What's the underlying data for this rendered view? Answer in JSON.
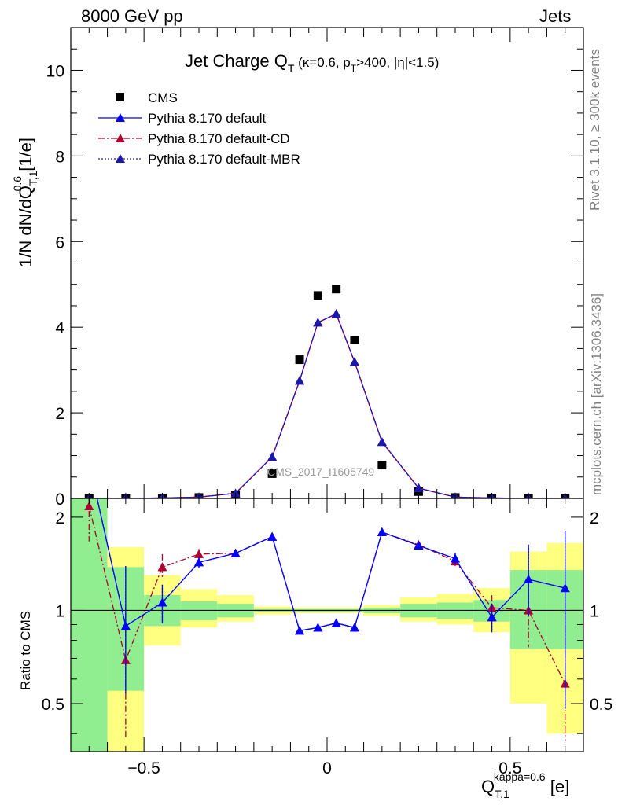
{
  "header": {
    "left": "8000 GeV pp",
    "right": "Jets"
  },
  "side_labels": {
    "rivet": "Rivet 3.1.10, ≥ 300k events",
    "mcplots": "mcplots.cern.ch [arXiv:1306.3436]"
  },
  "colors": {
    "data": "#000000",
    "default": "#0000ff",
    "cd": "#b00030",
    "mbr": "#1a18a8",
    "band_stat": "#90ee90",
    "band_sys": "#ffff80"
  },
  "chart_data": [
    {
      "type": "scatter",
      "title": "Jet Charge Q_T (κ=0.6, p_T>400, |η|<1.5)",
      "ylabel": "1/N dN/dQ_{T,1}^{0.6} [1/e]",
      "watermark": "CMS_2017_I1605749",
      "xlim": [
        -0.7,
        0.7
      ],
      "ylim": [
        0,
        11
      ],
      "yticks": [
        0,
        2,
        4,
        6,
        8,
        10
      ],
      "legend": [
        "CMS",
        "Pythia 8.170 default",
        "Pythia 8.170 default-CD",
        "Pythia 8.170 default-MBR"
      ],
      "legend_position": "top-left",
      "series": [
        {
          "name": "CMS",
          "style": "squares",
          "x": [
            -0.65,
            -0.55,
            -0.45,
            -0.35,
            -0.25,
            -0.15,
            -0.075,
            -0.025,
            0.025,
            0.075,
            0.15,
            0.25,
            0.35,
            0.45,
            0.55,
            0.65
          ],
          "y": [
            0.0,
            0.0,
            0.01,
            0.02,
            0.08,
            0.58,
            3.24,
            4.74,
            4.89,
            3.7,
            0.78,
            0.16,
            0.02,
            0.01,
            0.0,
            0.0
          ]
        },
        {
          "name": "Pythia 8.170 default",
          "style": "solid",
          "x": [
            -0.65,
            -0.55,
            -0.45,
            -0.35,
            -0.25,
            -0.15,
            -0.075,
            -0.025,
            0.025,
            0.075,
            0.15,
            0.25,
            0.35,
            0.45,
            0.55,
            0.65
          ],
          "y": [
            0.0,
            0.0,
            0.01,
            0.03,
            0.12,
            0.97,
            2.75,
            4.11,
            4.31,
            3.19,
            1.32,
            0.24,
            0.03,
            0.01,
            0.0,
            0.0
          ]
        },
        {
          "name": "Pythia 8.170 default-CD",
          "style": "dashdot",
          "x": [
            -0.65,
            -0.55,
            -0.45,
            -0.35,
            -0.25,
            -0.15,
            -0.075,
            -0.025,
            0.025,
            0.075,
            0.15,
            0.25,
            0.35,
            0.45,
            0.55,
            0.65
          ],
          "y": [
            0.0,
            0.0,
            0.01,
            0.03,
            0.12,
            0.97,
            2.75,
            4.11,
            4.31,
            3.19,
            1.32,
            0.24,
            0.03,
            0.01,
            0.0,
            0.0
          ]
        },
        {
          "name": "Pythia 8.170 default-MBR",
          "style": "dotted",
          "x": [
            -0.65,
            -0.55,
            -0.45,
            -0.35,
            -0.25,
            -0.15,
            -0.075,
            -0.025,
            0.025,
            0.075,
            0.15,
            0.25,
            0.35,
            0.45,
            0.55,
            0.65
          ],
          "y": [
            0.0,
            0.0,
            0.01,
            0.03,
            0.12,
            0.97,
            2.75,
            4.11,
            4.31,
            3.19,
            1.32,
            0.24,
            0.03,
            0.01,
            0.0,
            0.0
          ]
        }
      ]
    },
    {
      "type": "line",
      "ylabel": "Ratio to CMS",
      "xlabel": "Q_{T,1}^{kappa=0.6} [e]",
      "xlim": [
        -0.7,
        0.7
      ],
      "ylim": [
        0.35,
        2.3
      ],
      "log_y": true,
      "xticks": [
        -0.5,
        0,
        0.5
      ],
      "yticks": [
        0.5,
        1,
        2
      ],
      "reference_line": 1,
      "bands": [
        {
          "x0": -0.7,
          "x1": -0.6,
          "stat": [
            0.35,
            2.3
          ],
          "total": [
            0.35,
            2.3
          ]
        },
        {
          "x0": -0.6,
          "x1": -0.5,
          "stat": [
            0.55,
            1.38
          ],
          "total": [
            0.35,
            1.6
          ]
        },
        {
          "x0": -0.5,
          "x1": -0.4,
          "stat": [
            0.89,
            1.12
          ],
          "total": [
            0.77,
            1.3
          ]
        },
        {
          "x0": -0.4,
          "x1": -0.3,
          "stat": [
            0.93,
            1.07
          ],
          "total": [
            0.88,
            1.17
          ]
        },
        {
          "x0": -0.3,
          "x1": -0.2,
          "stat": [
            0.95,
            1.05
          ],
          "total": [
            0.92,
            1.12
          ]
        },
        {
          "x0": -0.2,
          "x1": -0.1,
          "stat": [
            0.99,
            1.01
          ],
          "total": [
            0.97,
            1.03
          ]
        },
        {
          "x0": -0.1,
          "x1": 0.0,
          "stat": [
            0.99,
            1.01
          ],
          "total": [
            0.98,
            1.02
          ]
        },
        {
          "x0": 0.0,
          "x1": 0.1,
          "stat": [
            0.99,
            1.01
          ],
          "total": [
            0.98,
            1.02
          ]
        },
        {
          "x0": 0.1,
          "x1": 0.2,
          "stat": [
            0.98,
            1.02
          ],
          "total": [
            0.96,
            1.04
          ]
        },
        {
          "x0": 0.2,
          "x1": 0.3,
          "stat": [
            0.95,
            1.05
          ],
          "total": [
            0.92,
            1.1
          ]
        },
        {
          "x0": 0.3,
          "x1": 0.4,
          "stat": [
            0.94,
            1.06
          ],
          "total": [
            0.9,
            1.13
          ]
        },
        {
          "x0": 0.4,
          "x1": 0.5,
          "stat": [
            0.92,
            1.08
          ],
          "total": [
            0.85,
            1.18
          ]
        },
        {
          "x0": 0.5,
          "x1": 0.6,
          "stat": [
            0.75,
            1.35
          ],
          "total": [
            0.5,
            1.55
          ]
        },
        {
          "x0": 0.6,
          "x1": 0.7,
          "stat": [
            0.75,
            1.35
          ],
          "total": [
            0.4,
            1.65
          ]
        }
      ],
      "series": [
        {
          "name": "Pythia 8.170 default",
          "style": "solid",
          "x": [
            -0.65,
            -0.55,
            -0.45,
            -0.35,
            -0.25,
            -0.15,
            -0.075,
            -0.025,
            0.025,
            0.075,
            0.15,
            0.25,
            0.35,
            0.45,
            0.55,
            0.65
          ],
          "y": [
            3.0,
            0.89,
            1.06,
            1.43,
            1.53,
            1.73,
            0.86,
            0.88,
            0.91,
            0.88,
            1.79,
            1.62,
            1.47,
            0.95,
            1.26,
            1.18
          ],
          "err_lo": [
            0,
            0.35,
            0.15,
            0.06,
            0.03,
            0.02,
            0.01,
            0.01,
            0.01,
            0.01,
            0.02,
            0.03,
            0.06,
            0.1,
            0.3,
            0.7
          ],
          "err_hi": [
            0,
            0.5,
            0.15,
            0.06,
            0.03,
            0.02,
            0.01,
            0.01,
            0.01,
            0.01,
            0.02,
            0.03,
            0.06,
            0.1,
            0.37,
            0.63
          ]
        },
        {
          "name": "Pythia 8.170 default-CD",
          "style": "dashdot",
          "x": [
            -0.65,
            -0.55,
            -0.45,
            -0.35,
            -0.25,
            -0.15,
            -0.075,
            -0.025,
            0.025,
            0.075,
            0.15,
            0.25,
            0.35,
            0.45,
            0.55,
            0.65
          ],
          "y": [
            2.17,
            0.69,
            1.38,
            1.52,
            1.53,
            1.73,
            0.86,
            0.88,
            0.91,
            0.88,
            1.79,
            1.63,
            1.44,
            1.02,
            1.0,
            0.58
          ],
          "err_lo": [
            0.5,
            0.3,
            0.12,
            0.06,
            0.03,
            0.02,
            0.01,
            0.01,
            0.01,
            0.01,
            0.02,
            0.03,
            0.06,
            0.1,
            0.24,
            0.2
          ],
          "err_hi": [
            0.13,
            0.35,
            0.14,
            0.06,
            0.03,
            0.02,
            0.01,
            0.01,
            0.01,
            0.01,
            0.02,
            0.03,
            0.06,
            0.1,
            0.24,
            0.4
          ]
        },
        {
          "name": "Pythia 8.170 default-MBR",
          "style": "dotted",
          "x": [
            -0.65,
            -0.55,
            -0.45,
            -0.35,
            -0.25,
            -0.15,
            -0.075,
            -0.025,
            0.025,
            0.075,
            0.15,
            0.25,
            0.35,
            0.45,
            0.55,
            0.65
          ],
          "y": [
            3.0,
            0.89,
            1.06,
            1.43,
            1.53,
            1.73,
            0.86,
            0.88,
            0.91,
            0.88,
            1.79,
            1.62,
            1.47,
            0.95,
            1.26,
            1.18
          ],
          "err_lo": [
            0,
            0.35,
            0.15,
            0.06,
            0.03,
            0.02,
            0.01,
            0.01,
            0.01,
            0.01,
            0.02,
            0.03,
            0.06,
            0.1,
            0.3,
            0.7
          ],
          "err_hi": [
            0,
            0.5,
            0.15,
            0.06,
            0.03,
            0.02,
            0.01,
            0.01,
            0.01,
            0.01,
            0.02,
            0.03,
            0.06,
            0.1,
            0.37,
            0.63
          ]
        }
      ]
    }
  ]
}
